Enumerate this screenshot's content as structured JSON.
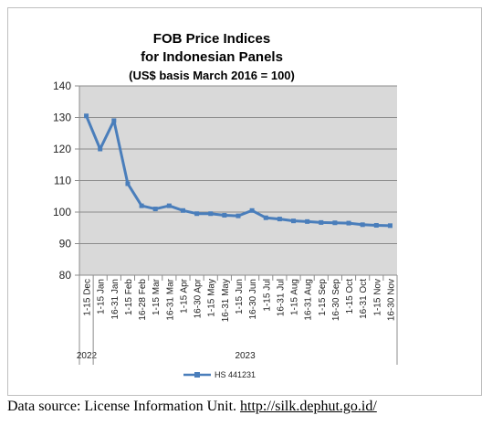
{
  "chart_data": {
    "type": "line",
    "title": [
      "FOB Price Indices",
      "for Indonesian Panels"
    ],
    "subtitle": "(US$ basis March 2016 = 100)",
    "categories": [
      "1-15 Dec",
      "1-15 Jan",
      "16-31 Jan",
      "1-15 Feb",
      "16-28 Feb",
      "1-15 Mar",
      "16-31 Mar",
      "1-15 Apr",
      "16-30 Apr",
      "1-15 May",
      "16-31 May",
      "1-15 Jun",
      "16-30 Jun",
      "1-15 Jul",
      "16-31 Jul",
      "1-15 Aug",
      "16-31 Aug",
      "1-15 Sep",
      "16-30 Sep",
      "1-15 Oct",
      "16-31 Oct",
      "1-15 Nov",
      "16-30 Nov"
    ],
    "year_labels": [
      {
        "label": "2022",
        "start_index": 0
      },
      {
        "label": "2023",
        "start_index": 1
      }
    ],
    "series": [
      {
        "name": "HS 441231",
        "color": "#4a7ebb",
        "values": [
          130.5,
          120,
          129,
          109,
          102,
          101,
          102,
          100.5,
          99.5,
          99.5,
          99,
          98.8,
          100.5,
          98.2,
          97.8,
          97.2,
          97,
          96.7,
          96.6,
          96.5,
          96,
          95.8,
          95.7
        ]
      }
    ],
    "ylim": [
      80,
      140
    ],
    "yticks": [
      80,
      90,
      100,
      110,
      120,
      130,
      140
    ],
    "xlabel": "",
    "ylabel": "",
    "grid": true,
    "legend": "bottom",
    "plot_background": "#d9d9d9"
  },
  "footer": {
    "prefix": "Data source: License Information Unit. ",
    "link": "http://silk.dephut.go.id/"
  }
}
